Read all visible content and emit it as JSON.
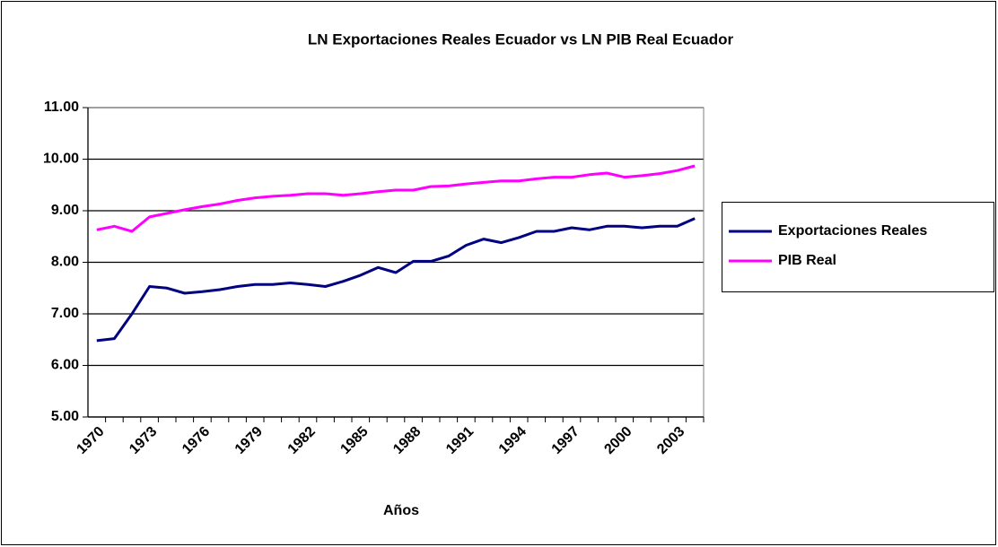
{
  "chart_data": {
    "type": "line",
    "title": "LN Exportaciones Reales Ecuador vs LN PIB Real Ecuador",
    "x_label": "Años",
    "categories": [
      "1970",
      null,
      null,
      "1973",
      null,
      null,
      "1976",
      null,
      null,
      "1979",
      null,
      null,
      "1982",
      null,
      null,
      "1985",
      null,
      null,
      "1988",
      null,
      null,
      "1991",
      null,
      null,
      "1994",
      null,
      null,
      "1997",
      null,
      null,
      "2000",
      null,
      null,
      "2003",
      null
    ],
    "series": [
      {
        "name": "Exportaciones Reales",
        "color": "#000080",
        "values": [
          6.48,
          6.52,
          7.0,
          7.53,
          7.5,
          7.4,
          7.43,
          7.47,
          7.53,
          7.57,
          7.57,
          7.6,
          7.57,
          7.53,
          7.63,
          7.75,
          7.9,
          7.8,
          8.02,
          8.02,
          8.12,
          8.33,
          8.45,
          8.38,
          8.48,
          8.6,
          8.6,
          8.67,
          8.63,
          8.7,
          8.7,
          8.67,
          8.7,
          8.7,
          8.85
        ]
      },
      {
        "name": "PIB Real",
        "color": "#ff00ff",
        "values": [
          8.63,
          8.7,
          8.6,
          8.88,
          8.95,
          9.02,
          9.08,
          9.13,
          9.2,
          9.25,
          9.28,
          9.3,
          9.33,
          9.33,
          9.3,
          9.33,
          9.37,
          9.4,
          9.4,
          9.47,
          9.48,
          9.52,
          9.55,
          9.58,
          9.58,
          9.62,
          9.65,
          9.65,
          9.7,
          9.73,
          9.65,
          9.68,
          9.72,
          9.78,
          9.87
        ]
      }
    ],
    "ylim": [
      5,
      11
    ],
    "yticks": [
      {
        "value": 5,
        "label": "5.00"
      },
      {
        "value": 6,
        "label": "6.00"
      },
      {
        "value": 7,
        "label": "7.00"
      },
      {
        "value": 8,
        "label": "8.00"
      },
      {
        "value": 9,
        "label": "9.00"
      },
      {
        "value": 10,
        "label": "10.00"
      },
      {
        "value": 11,
        "label": "11.00"
      }
    ],
    "grid": true,
    "legend": "right"
  }
}
